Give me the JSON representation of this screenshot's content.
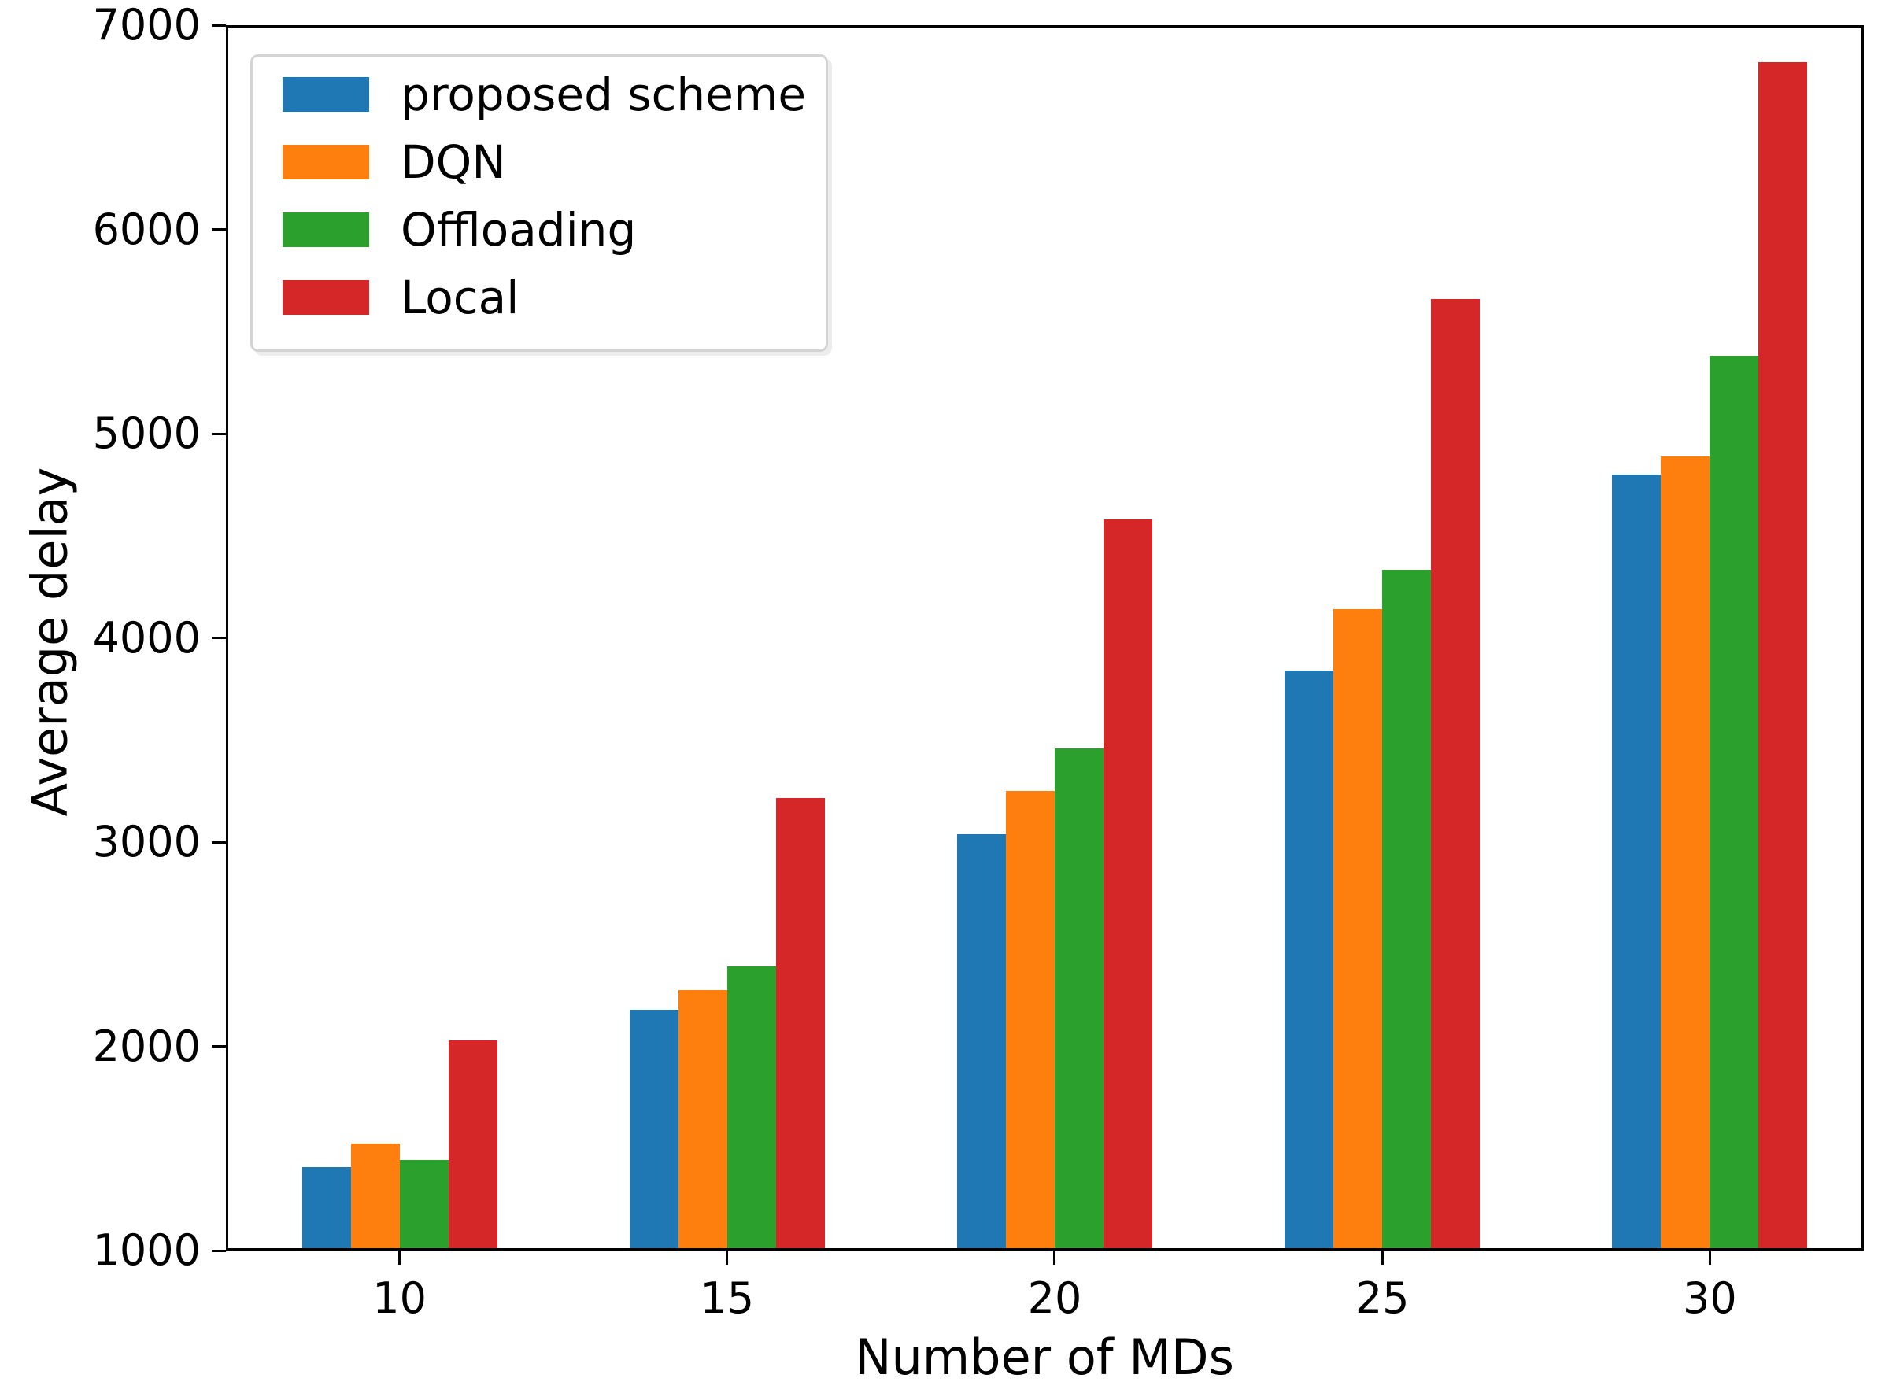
{
  "chart_data": {
    "type": "bar",
    "title": "",
    "xlabel": "Number of MDs",
    "ylabel": "Average delay",
    "categories": [
      "10",
      "15",
      "20",
      "25",
      "30"
    ],
    "series": [
      {
        "name": "proposed scheme",
        "color": "#1f77b4",
        "values": [
          1410,
          2180,
          3040,
          3840,
          4800
        ]
      },
      {
        "name": "DQN",
        "color": "#ff7f0e",
        "values": [
          1525,
          2275,
          3250,
          4140,
          4890
        ]
      },
      {
        "name": "Offloading",
        "color": "#2ca02c",
        "values": [
          1445,
          2390,
          3460,
          4335,
          5380
        ]
      },
      {
        "name": "Local",
        "color": "#d62728",
        "values": [
          2030,
          3215,
          4580,
          5660,
          6820
        ]
      }
    ],
    "ylim": [
      1000,
      7000
    ],
    "yticks": [
      1000,
      2000,
      3000,
      4000,
      5000,
      6000,
      7000
    ],
    "grid": false,
    "legend_position": "upper left",
    "axis_color": "#000000",
    "background_color": "#ffffff"
  }
}
